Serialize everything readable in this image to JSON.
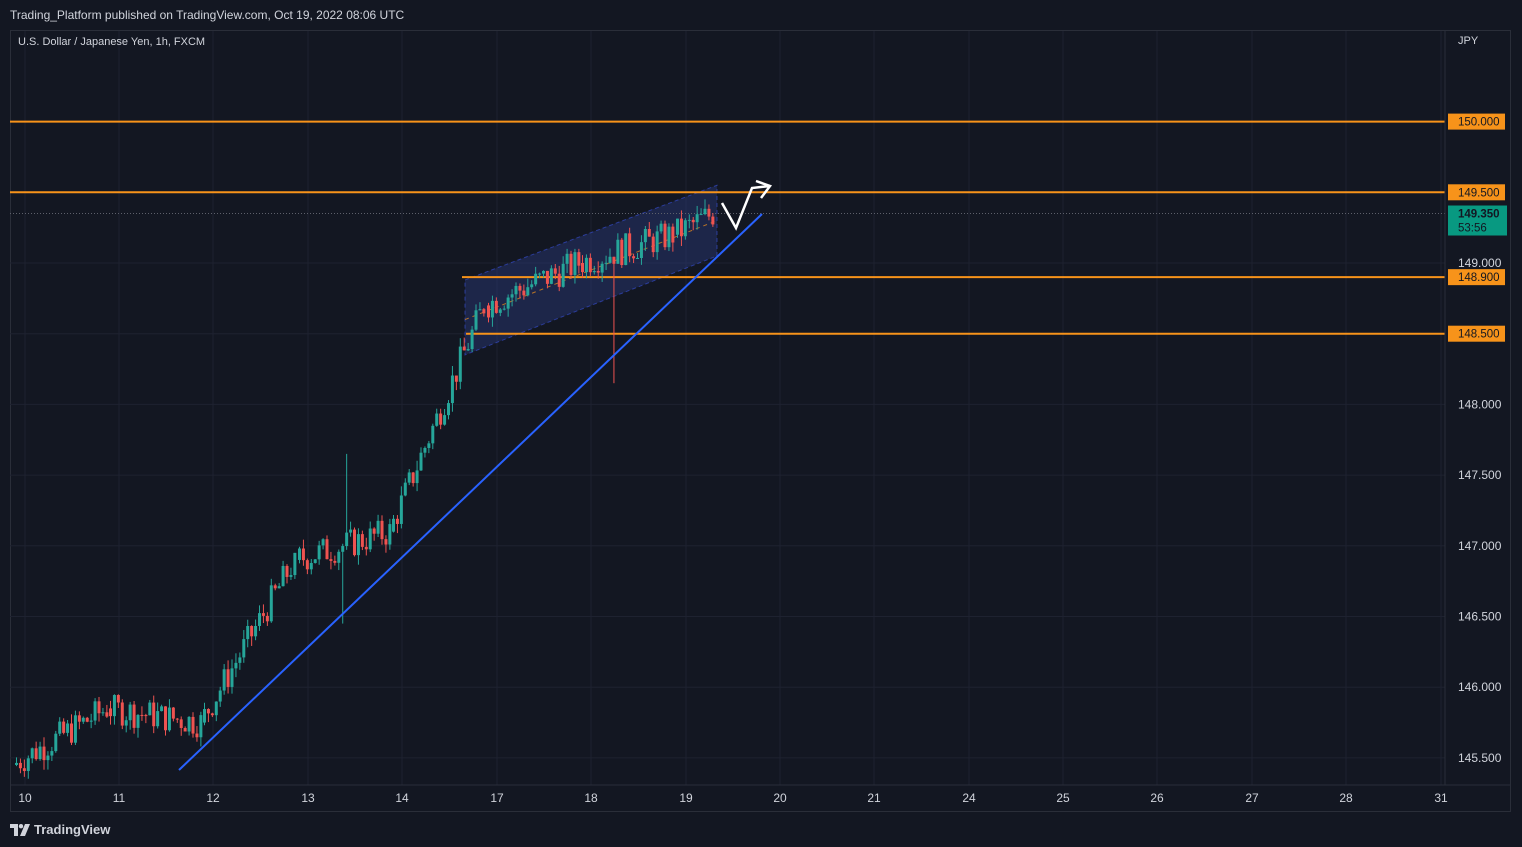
{
  "header": {
    "published": "Trading_Platform published on TradingView.com, Oct 19, 2022 08:06 UTC",
    "symbol": "U.S. Dollar / Japanese Yen, 1h, FXCM",
    "currency": "JPY"
  },
  "footer": {
    "logo_text": "TradingView"
  },
  "colors": {
    "background": "#131722",
    "grid": "#1e2230",
    "up": "#26a69a",
    "down": "#ef5350",
    "level": "#f7931a",
    "trendline": "#2962ff",
    "channel": "#2a3a7a",
    "arrow": "#ffffff",
    "price_tag": "#089981"
  },
  "chart_data": {
    "type": "candlestick",
    "symbol": "USD/JPY",
    "timeframe": "1h",
    "x_ticks": [
      "10",
      "11",
      "12",
      "13",
      "14",
      "17",
      "18",
      "19",
      "20",
      "21",
      "24",
      "25",
      "26",
      "27",
      "28",
      "31"
    ],
    "y_ticks": [
      "145.500",
      "146.000",
      "146.500",
      "147.000",
      "147.500",
      "148.000",
      "148.500",
      "149.000"
    ],
    "ylim": [
      145.4,
      150.3
    ],
    "horizontal_levels": [
      {
        "label": "150.000",
        "value": 150.0
      },
      {
        "label": "149.500",
        "value": 149.5
      },
      {
        "label": "148.900",
        "value": 148.9
      },
      {
        "label": "148.500",
        "value": 148.5
      }
    ],
    "last_price": {
      "value": "149.350",
      "countdown": "53:56"
    },
    "ohlc_daily_approx": [
      {
        "day": "10",
        "open": 145.45,
        "high": 145.95,
        "low": 145.35,
        "close": 145.85
      },
      {
        "day": "11",
        "open": 145.85,
        "high": 145.95,
        "low": 145.6,
        "close": 145.75
      },
      {
        "day": "12",
        "open": 145.75,
        "high": 146.95,
        "low": 145.7,
        "close": 146.9
      },
      {
        "day": "13",
        "open": 146.9,
        "high": 147.65,
        "low": 146.45,
        "close": 147.1
      },
      {
        "day": "14",
        "open": 147.1,
        "high": 148.85,
        "low": 147.0,
        "close": 148.7
      },
      {
        "day": "17",
        "open": 148.7,
        "high": 149.1,
        "low": 148.45,
        "close": 149.0
      },
      {
        "day": "18",
        "open": 149.0,
        "high": 149.3,
        "low": 148.15,
        "close": 149.2
      },
      {
        "day": "19",
        "open": 149.2,
        "high": 149.45,
        "low": 149.1,
        "close": 149.35
      }
    ]
  }
}
